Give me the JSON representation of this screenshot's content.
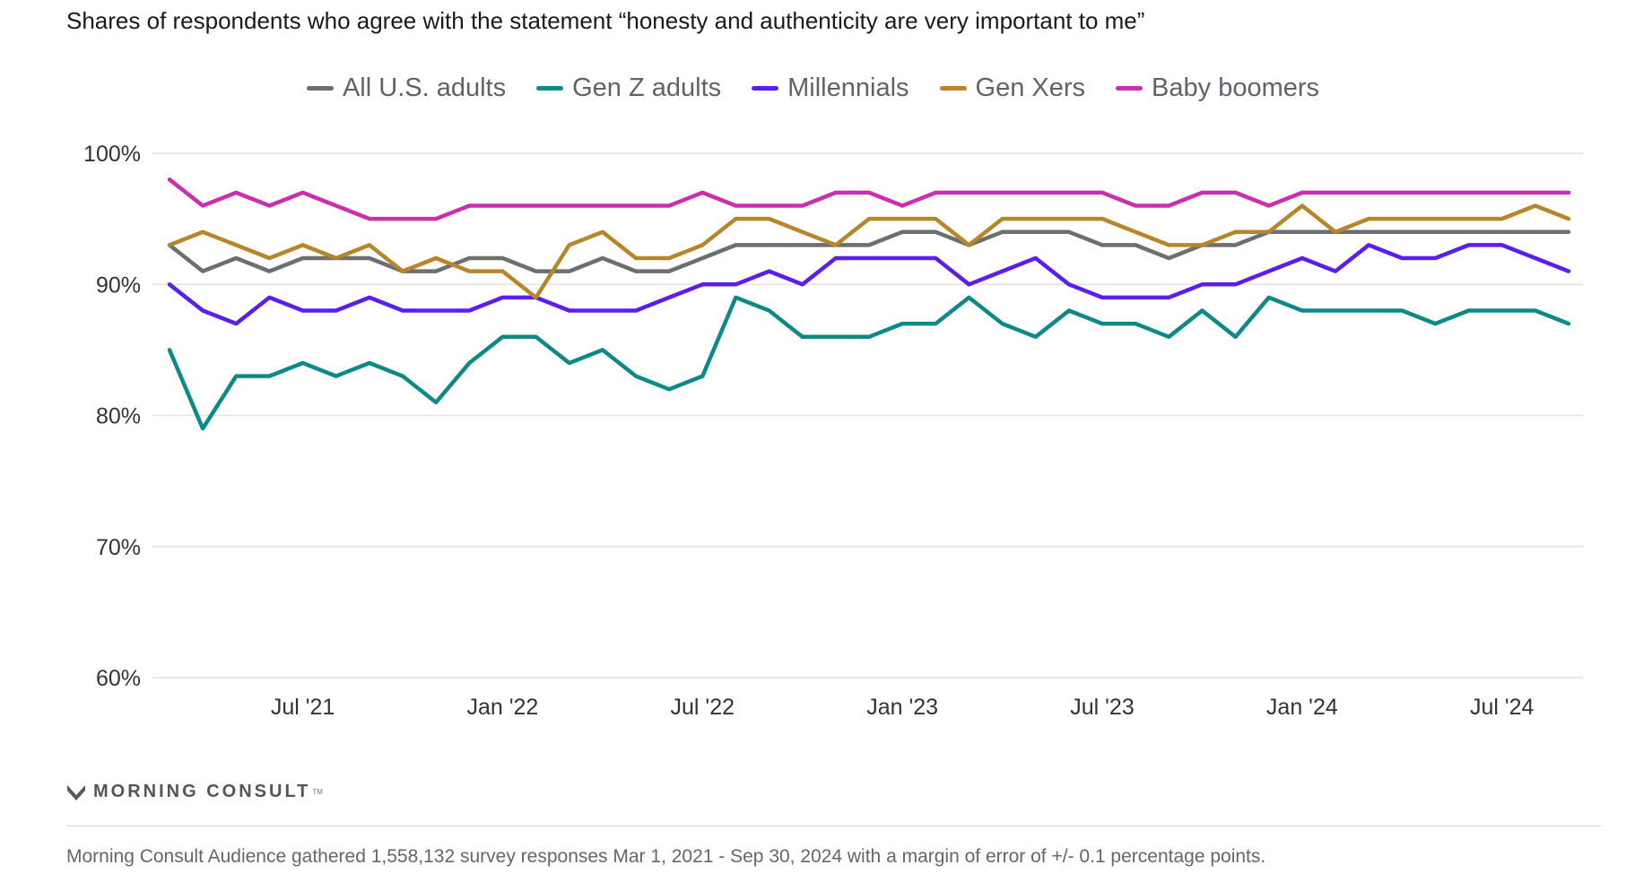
{
  "header": {
    "title": "Shares of respondents who agree with the statement “honesty and authenticity are very important to me”"
  },
  "brand": {
    "logo_text": "MORNING CONSULT",
    "logo_mark": "TM"
  },
  "footer": {
    "note": "Morning Consult Audience gathered 1,558,132 survey responses Mar 1, 2021 - Sep 30, 2024 with a margin of error of +/- 0.1 percentage points."
  },
  "chart_data": {
    "type": "line",
    "title": "Shares of respondents who agree with the statement “honesty and authenticity are very important to me”",
    "xlabel": "",
    "ylabel": "",
    "ylim": [
      60,
      100
    ],
    "yticks": [
      60,
      70,
      80,
      90,
      100
    ],
    "ytick_labels": [
      "60%",
      "70%",
      "80%",
      "90%",
      "100%"
    ],
    "xtick_labels": [
      "Jul '21",
      "Jan '22",
      "Jul '22",
      "Jan '23",
      "Jul '23",
      "Jan '24",
      "Jul '24"
    ],
    "xtick_index": [
      4,
      10,
      16,
      22,
      28,
      34,
      40
    ],
    "x": [
      "Mar 2021",
      "Apr 2021",
      "May 2021",
      "Jun 2021",
      "Jul 2021",
      "Aug 2021",
      "Sep 2021",
      "Oct 2021",
      "Nov 2021",
      "Dec 2021",
      "Jan 2022",
      "Feb 2022",
      "Mar 2022",
      "Apr 2022",
      "May 2022",
      "Jun 2022",
      "Jul 2022",
      "Aug 2022",
      "Sep 2022",
      "Oct 2022",
      "Nov 2022",
      "Dec 2022",
      "Jan 2023",
      "Feb 2023",
      "Mar 2023",
      "Apr 2023",
      "May 2023",
      "Jun 2023",
      "Jul 2023",
      "Aug 2023",
      "Sep 2023",
      "Oct 2023",
      "Nov 2023",
      "Dec 2023",
      "Jan 2024",
      "Feb 2024",
      "Mar 2024",
      "Apr 2024",
      "May 2024",
      "Jun 2024",
      "Jul 2024",
      "Aug 2024",
      "Sep 2024"
    ],
    "grid": true,
    "legend_position": "top-center",
    "series": [
      {
        "name": "All U.S. adults",
        "color": "#6b6f6f",
        "values": [
          93,
          91,
          92,
          91,
          92,
          92,
          92,
          91,
          91,
          92,
          92,
          91,
          91,
          92,
          91,
          91,
          92,
          93,
          93,
          93,
          93,
          93,
          94,
          94,
          93,
          94,
          94,
          94,
          93,
          93,
          92,
          93,
          93,
          94,
          94,
          94,
          94,
          94,
          94,
          94,
          94,
          94,
          94
        ]
      },
      {
        "name": "Gen Z adults",
        "color": "#0d8a87",
        "values": [
          85,
          79,
          83,
          83,
          84,
          83,
          84,
          83,
          81,
          84,
          86,
          86,
          84,
          85,
          83,
          82,
          83,
          89,
          88,
          86,
          86,
          86,
          87,
          87,
          89,
          87,
          86,
          88,
          87,
          87,
          86,
          88,
          86,
          89,
          88,
          88,
          88,
          88,
          87,
          88,
          88,
          88,
          87
        ]
      },
      {
        "name": "Millennials",
        "color": "#5a1ff0",
        "values": [
          90,
          88,
          87,
          89,
          88,
          88,
          89,
          88,
          88,
          88,
          89,
          89,
          88,
          88,
          88,
          89,
          90,
          90,
          91,
          90,
          92,
          92,
          92,
          92,
          90,
          91,
          92,
          90,
          89,
          89,
          89,
          90,
          90,
          91,
          92,
          91,
          93,
          92,
          92,
          93,
          93,
          92,
          91
        ]
      },
      {
        "name": "Gen Xers",
        "color": "#b8862a",
        "values": [
          93,
          94,
          93,
          92,
          93,
          92,
          93,
          91,
          92,
          91,
          91,
          89,
          93,
          94,
          92,
          92,
          93,
          95,
          95,
          94,
          93,
          95,
          95,
          95,
          93,
          95,
          95,
          95,
          95,
          94,
          93,
          93,
          94,
          94,
          96,
          94,
          95,
          95,
          95,
          95,
          95,
          96,
          95
        ]
      },
      {
        "name": "Baby boomers",
        "color": "#cc2fae",
        "values": [
          98,
          96,
          97,
          96,
          97,
          96,
          95,
          95,
          95,
          96,
          96,
          96,
          96,
          96,
          96,
          96,
          97,
          96,
          96,
          96,
          97,
          97,
          96,
          97,
          97,
          97,
          97,
          97,
          97,
          96,
          96,
          97,
          97,
          96,
          97,
          97,
          97,
          97,
          97,
          97,
          97,
          97,
          97
        ]
      }
    ]
  }
}
